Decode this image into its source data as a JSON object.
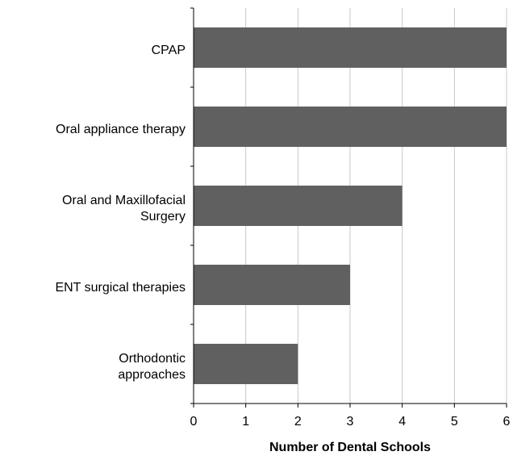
{
  "chart_data": {
    "type": "bar",
    "orientation": "horizontal",
    "categories": [
      "CPAP",
      "Oral appliance therapy",
      "Oral and Maxillofacial\nSurgery",
      "ENT surgical therapies",
      "Orthodontic\napproaches"
    ],
    "values": [
      6,
      6,
      4,
      3,
      2
    ],
    "color": "#606060",
    "xlabel": "Number of Dental Schools",
    "xlim": [
      0,
      6
    ],
    "xticks": [
      0,
      1,
      2,
      3,
      4,
      5,
      6
    ],
    "grid": true
  }
}
